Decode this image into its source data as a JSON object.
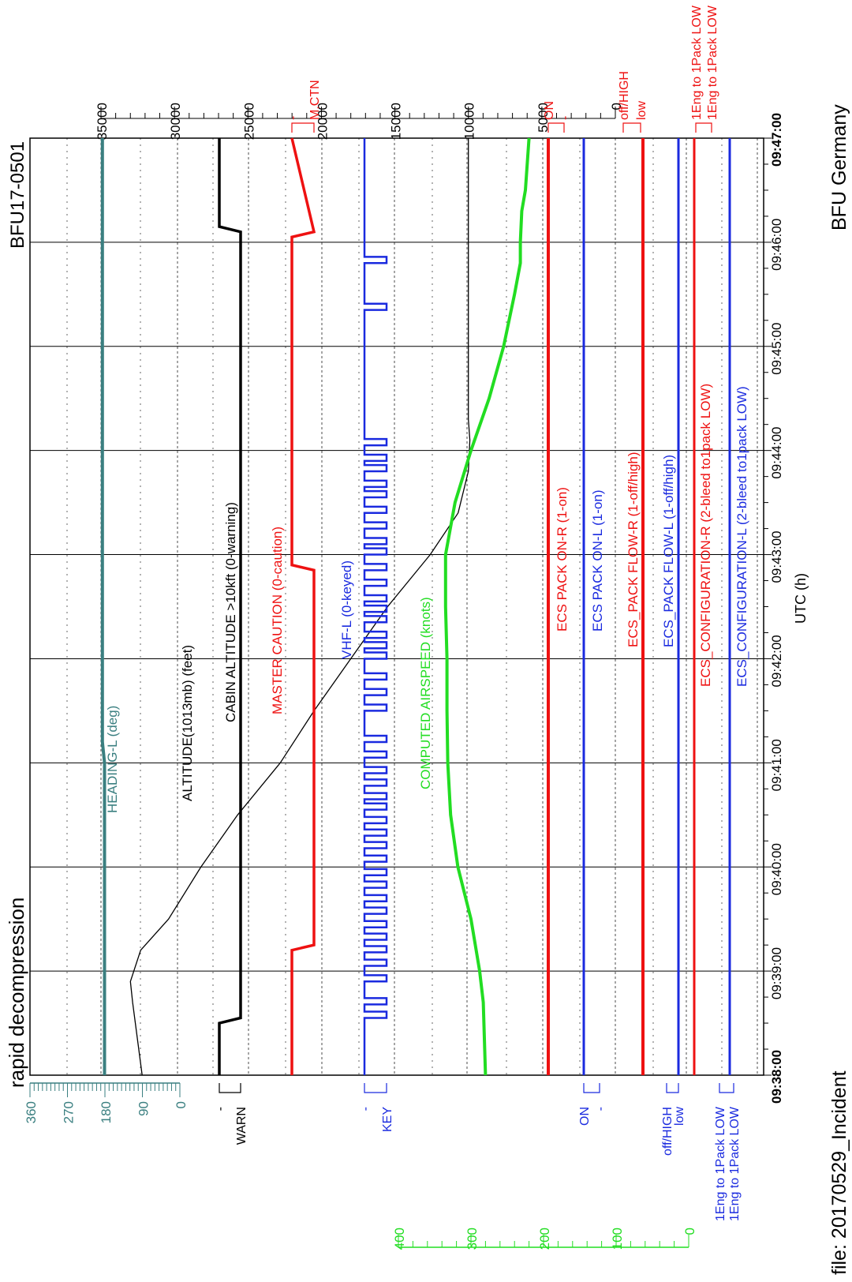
{
  "header": {
    "title": "rapid decompression",
    "report_id": "BFU17-0501",
    "file_label": "file: 20170529_Incident",
    "authority": "BFU Germany"
  },
  "chart_data": {
    "type": "line",
    "title": "rapid decompression",
    "xlabel": "UTC (h)",
    "x_ticks": [
      "09:38:00",
      "09:39:00",
      "09:40:00",
      "09:41:00",
      "09:42:00",
      "09:43:00",
      "09:44:00",
      "09:45:00",
      "09:46:00",
      "09:47:00"
    ],
    "x_range": [
      "09:38:00",
      "09:47:00"
    ],
    "grid": true,
    "axes": {
      "altitude": {
        "ylim": [
          0,
          35000
        ],
        "ticks": [
          0,
          5000,
          10000,
          15000,
          20000,
          25000,
          30000,
          35000
        ]
      },
      "heading": {
        "ylim": [
          0,
          360
        ],
        "ticks": [
          0,
          90,
          180,
          270,
          360
        ]
      },
      "airspeed": {
        "ylim": [
          0,
          400
        ],
        "ticks": [
          0,
          100,
          200,
          300,
          400
        ]
      }
    },
    "series": [
      {
        "name": "HEADING-L (deg)",
        "color": "#3a7f80",
        "x": [
          0,
          3.0,
          3.2,
          9
        ],
        "y": [
          181,
          181,
          186,
          186
        ]
      },
      {
        "name": "ALTITUDE(1013mb) (feet)",
        "color": "#000000",
        "x": [
          0,
          0.7,
          0.9,
          1.2,
          1.5,
          2.0,
          2.5,
          3.0,
          3.5,
          4.0,
          4.5,
          5.0,
          5.4,
          5.8,
          6.1,
          6.3,
          6.6,
          7.0,
          9.0
        ],
        "y": [
          32200,
          32850,
          33000,
          32300,
          30400,
          28200,
          25700,
          22800,
          20500,
          18000,
          15500,
          12600,
          10700,
          10000,
          9900,
          10000,
          10000,
          10000,
          10000
        ]
      },
      {
        "name": "COMPUTED AIRSPEED (knots)",
        "color": "#22dd22",
        "x": [
          0,
          0.7,
          1.0,
          1.5,
          2.0,
          2.5,
          3.0,
          3.5,
          4.0,
          4.5,
          5.0,
          5.5,
          6.0,
          6.5,
          7.0,
          7.5,
          7.8,
          8.0,
          8.3,
          8.5,
          9.0
        ],
        "y": [
          280,
          283,
          288,
          300,
          318,
          328,
          332,
          333,
          333,
          335,
          335,
          322,
          300,
          275,
          255,
          240,
          232,
          232,
          230,
          225,
          220
        ]
      },
      {
        "name": "CABIN ALTITUDE >10kft (0-warning)",
        "color": "#000000",
        "states": [
          "-",
          "WARN"
        ],
        "x": [
          0,
          0.5,
          0.55,
          8.1,
          8.15,
          9
        ],
        "y": [
          1,
          1,
          0,
          0,
          1,
          1
        ]
      },
      {
        "name": "MASTER CAUTION (0-caution)",
        "color": "#ee1111",
        "states": [
          "-",
          "M.CTN"
        ],
        "x": [
          0,
          1.2,
          1.25,
          4.85,
          4.9,
          8.05,
          8.1,
          9
        ],
        "y": [
          1,
          1,
          0,
          0,
          1,
          1,
          0,
          1
        ]
      },
      {
        "name": "VHF-L (0-keyed)",
        "color": "#1a2adf",
        "states": [
          "-",
          "KEY"
        ]
      },
      {
        "name": "ECS PACK ON-R (1-on)",
        "color": "#ee1111",
        "states": [
          "ON",
          "-"
        ],
        "x": [
          0,
          9
        ],
        "y": [
          1,
          1
        ]
      },
      {
        "name": "ECS PACK ON-L (1-on)",
        "color": "#1a2adf",
        "states": [
          "ON",
          "-"
        ],
        "x": [
          0,
          9
        ],
        "y": [
          1,
          1
        ]
      },
      {
        "name": "ECS_PACK FLOW-R (1-off/high)",
        "color": "#ee1111",
        "states": [
          "off/HIGH",
          "low"
        ],
        "x": [
          0,
          9
        ],
        "y": [
          1,
          1
        ]
      },
      {
        "name": "ECS_PACK FLOW-L (1-off/high)",
        "color": "#1a2adf",
        "states": [
          "off/HIGH",
          "low"
        ],
        "x": [
          0,
          9
        ],
        "y": [
          1,
          1
        ]
      },
      {
        "name": "ECS_CONFIGURATION-R (2-bleed to1pack LOW)",
        "color": "#ee1111",
        "states": [
          "1Eng to 1Pack LOW",
          "1Eng to 1Pack LOW"
        ],
        "x": [
          0,
          9
        ],
        "y": [
          1,
          1
        ]
      },
      {
        "name": "ECS_CONFIGURATION-L (2-bleed to1pack LOW)",
        "color": "#1a2adf",
        "states": [
          "1Eng to 1Pack LOW",
          "1Eng to 1Pack LOW"
        ],
        "x": [
          0,
          9
        ],
        "y": [
          1,
          1
        ]
      }
    ]
  }
}
